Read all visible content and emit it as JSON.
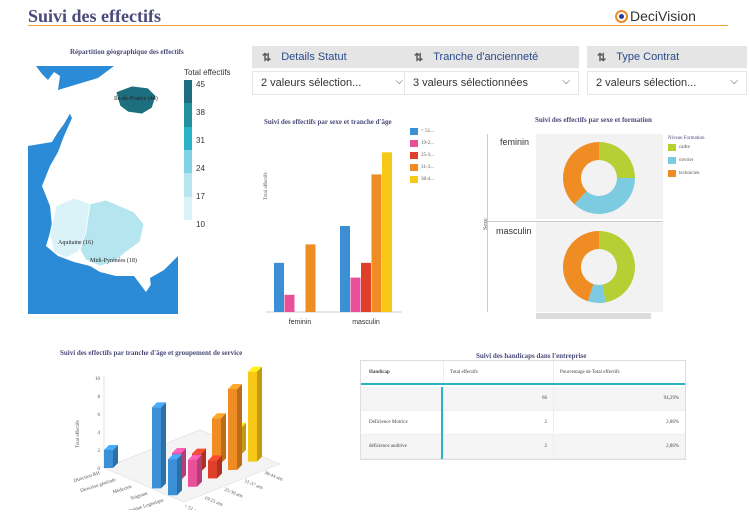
{
  "header": {
    "title": "Suivi des effectifs",
    "logo_text": "DeciVision"
  },
  "filters": [
    {
      "label": "Details Statut",
      "value": "2 valeurs sélection..."
    },
    {
      "label": "Tranche d'ancienneté",
      "value": "3 valeurs sélectionnées"
    },
    {
      "label": "Type Contrat",
      "value": "2 valeurs sélection..."
    }
  ],
  "map": {
    "title": "Répartition géographique des effectifs",
    "legend_title": "Total effectifs",
    "legend_ticks": [
      "45",
      "38",
      "31",
      "24",
      "17",
      "10"
    ],
    "legend_colors": [
      "#1d6e7e",
      "#23909e",
      "#2ab2c9",
      "#7fd3e4",
      "#b5e6f0",
      "#d9f3f8"
    ],
    "regions": [
      "Ile-de-France (44)",
      "Aquitaine (16)",
      "Midi-Pyrénées (18)"
    ]
  },
  "bar_chart": {
    "title": "Suivi des effectifs par sexe et tranche d'âge",
    "ylabel": "Total effectifs",
    "legend": [
      {
        "name": "< 51...",
        "color": "#3b8fd4"
      },
      {
        "name": "19-2...",
        "color": "#e8509a"
      },
      {
        "name": "25-3...",
        "color": "#e0402a"
      },
      {
        "name": "31-3...",
        "color": "#f08c24"
      },
      {
        "name": "38-4...",
        "color": "#f7c815"
      }
    ],
    "chart_data": {
      "type": "bar",
      "categories": [
        "feminin",
        "masculin"
      ],
      "series": [
        {
          "name": "< 51...",
          "values": [
            4,
            7
          ]
        },
        {
          "name": "19-2...",
          "values": [
            1.4,
            2.8
          ]
        },
        {
          "name": "25-3...",
          "values": [
            0,
            4
          ]
        },
        {
          "name": "31-3...",
          "values": [
            5.5,
            11.2
          ]
        },
        {
          "name": "38-4...",
          "values": [
            0,
            13
          ]
        }
      ],
      "xlabel": "",
      "ylabel": "Total effectifs",
      "ylim": [
        0,
        14
      ]
    }
  },
  "donut_chart": {
    "title": "Suivi des effectifs par sexe et formation",
    "ylabel": "Sexe",
    "legend_title": "Niveau Formation",
    "legend": [
      {
        "name": "cadre",
        "color": "#b5cf34"
      },
      {
        "name": "ouvrier",
        "color": "#7ccbe0"
      },
      {
        "name": "technicien",
        "color": "#f08c24"
      }
    ],
    "chart_data": {
      "type": "pie",
      "categories": [
        "feminin",
        "masculin"
      ],
      "series": [
        {
          "name": "cadre",
          "values": [
            25,
            47
          ]
        },
        {
          "name": "ouvrier",
          "values": [
            37,
            8
          ]
        },
        {
          "name": "technicien",
          "values": [
            38,
            45
          ]
        }
      ]
    }
  },
  "bar3d_chart": {
    "title": "Suivi des effectifs par tranche d'âge et groupement de service",
    "ylabel": "Total effectifs",
    "y_ticks": [
      "0",
      "2",
      "4",
      "6",
      "8",
      "10"
    ],
    "x_labels": [
      "Direction RH",
      "Direction générale",
      "Médecine",
      "Soignant",
      "Technique Logistique"
    ],
    "z_labels": [
      "< 51 ans",
      "19-25 ans",
      "25-30 ans",
      "31-37 ans",
      "38-44 ans"
    ],
    "chart_data": {
      "type": "bar",
      "categories": [
        "Direction RH",
        "Direction générale",
        "Médecine",
        "Soignant",
        "Technique Logistique"
      ],
      "series": [
        {
          "name": "< 51 ans",
          "values": [
            2,
            0,
            0,
            9,
            4
          ]
        },
        {
          "name": "19-25 ans",
          "values": [
            0,
            0,
            0,
            3,
            3
          ]
        },
        {
          "name": "25-30 ans",
          "values": [
            0,
            0,
            0,
            2,
            2
          ]
        },
        {
          "name": "31-37 ans",
          "values": [
            0,
            0,
            0,
            5,
            9
          ]
        },
        {
          "name": "38-44 ans",
          "values": [
            0,
            0,
            0,
            3,
            10
          ]
        }
      ],
      "ylim": [
        0,
        10
      ]
    }
  },
  "table": {
    "title": "Suivi des handicaps dans l'entreprise",
    "headers": [
      "Handicap",
      "Total effectifs",
      "Pourcentage de Total effectifs"
    ],
    "rows": [
      {
        "handicap": "",
        "total": "66",
        "pct": "94,29%"
      },
      {
        "handicap": "Déficience Motrice",
        "total": "2",
        "pct": "2,86%"
      },
      {
        "handicap": "déficience auditive",
        "total": "2",
        "pct": "2,86%"
      }
    ]
  }
}
